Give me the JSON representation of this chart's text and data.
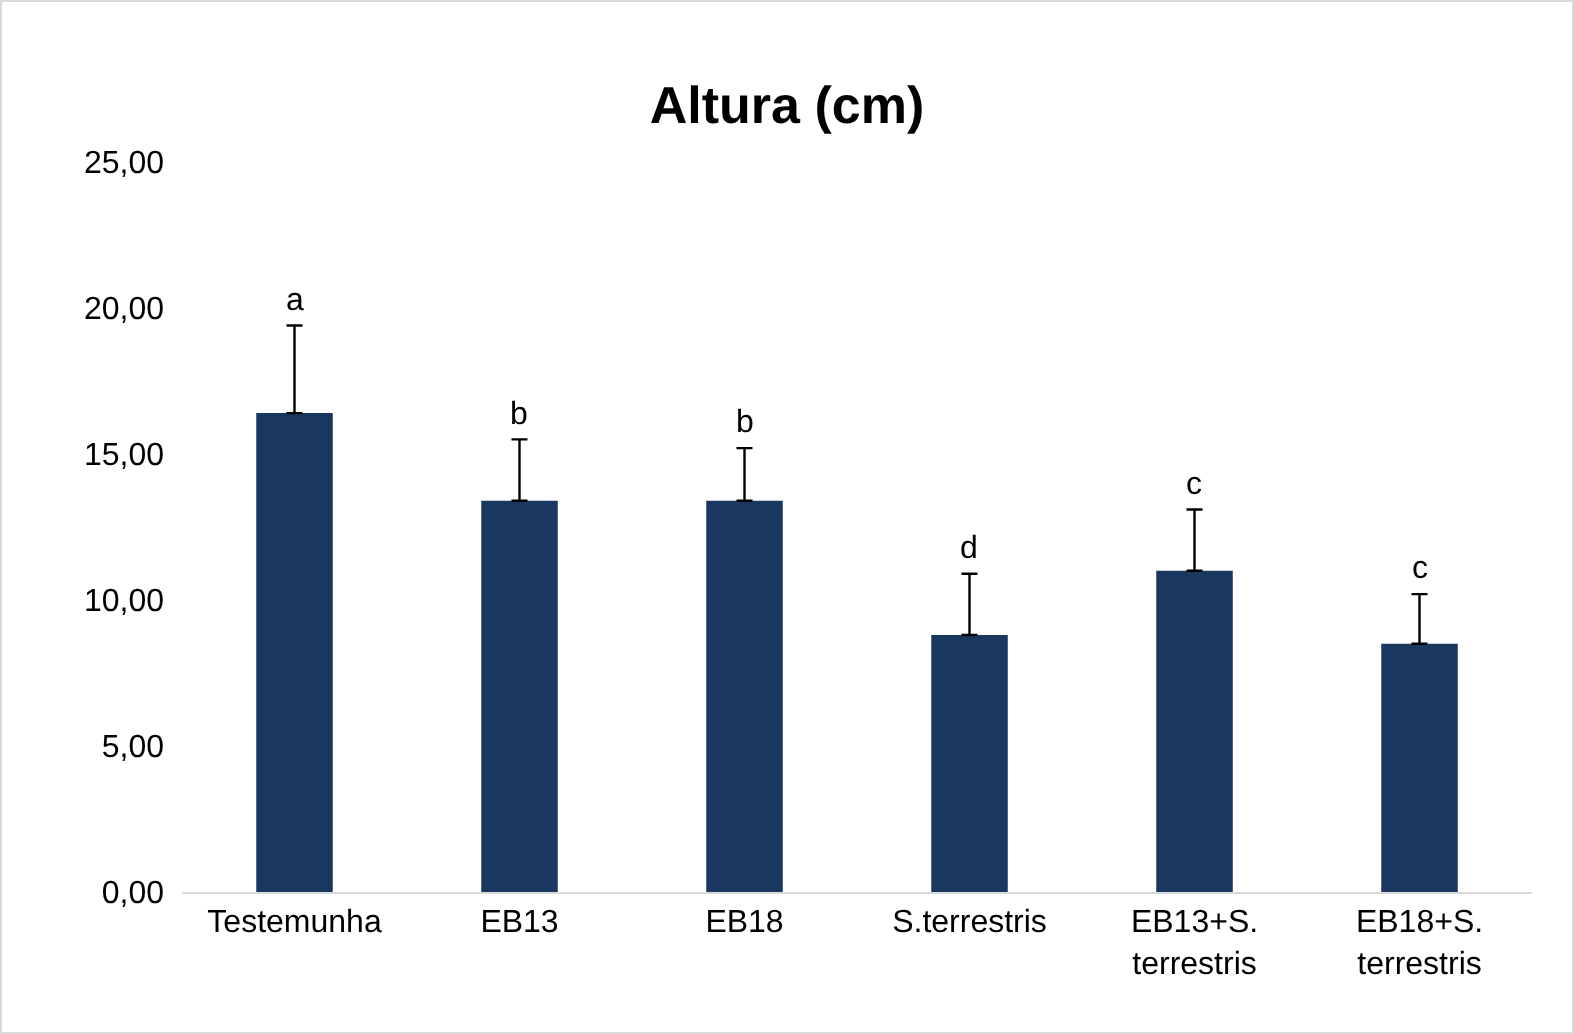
{
  "chart_data": {
    "type": "bar",
    "title": "Altura (cm)",
    "categories": [
      "Testemunha",
      "EB13",
      "EB18",
      "S.terrestris",
      "EB13+S.\nterrestris",
      "EB18+S.\nterrestris"
    ],
    "values": [
      16.4,
      13.4,
      13.4,
      8.8,
      11.0,
      8.5
    ],
    "errors": [
      [
        16.4,
        19.4
      ],
      [
        13.4,
        15.5
      ],
      [
        13.4,
        15.2
      ],
      [
        8.8,
        10.9
      ],
      [
        11.0,
        13.1
      ],
      [
        8.5,
        10.2
      ]
    ],
    "color": "#1a3760",
    "ylim": [
      0,
      25
    ],
    "yticks": [
      {
        "value": 0,
        "label": "0,00"
      },
      {
        "value": 5,
        "label": "5,00"
      },
      {
        "value": 10,
        "label": "10,00"
      },
      {
        "value": 15,
        "label": "15,00"
      },
      {
        "value": 20,
        "label": "20,00"
      },
      {
        "value": 25,
        "label": "25,00"
      }
    ],
    "grid": false,
    "annotations": [
      {
        "text": "a",
        "x": "Testemunha",
        "y": 19.4
      },
      {
        "text": "b",
        "x": "EB13",
        "y": 15.5
      },
      {
        "text": "b",
        "x": "EB18",
        "y": 15.2
      },
      {
        "text": "d",
        "x": "S.terrestris",
        "y": 10.9
      },
      {
        "text": "c",
        "x": "EB13+S.\nterrestris",
        "y": 13.1
      },
      {
        "text": "c",
        "x": "EB18+S.\nterrestris",
        "y": 10.2
      }
    ]
  }
}
